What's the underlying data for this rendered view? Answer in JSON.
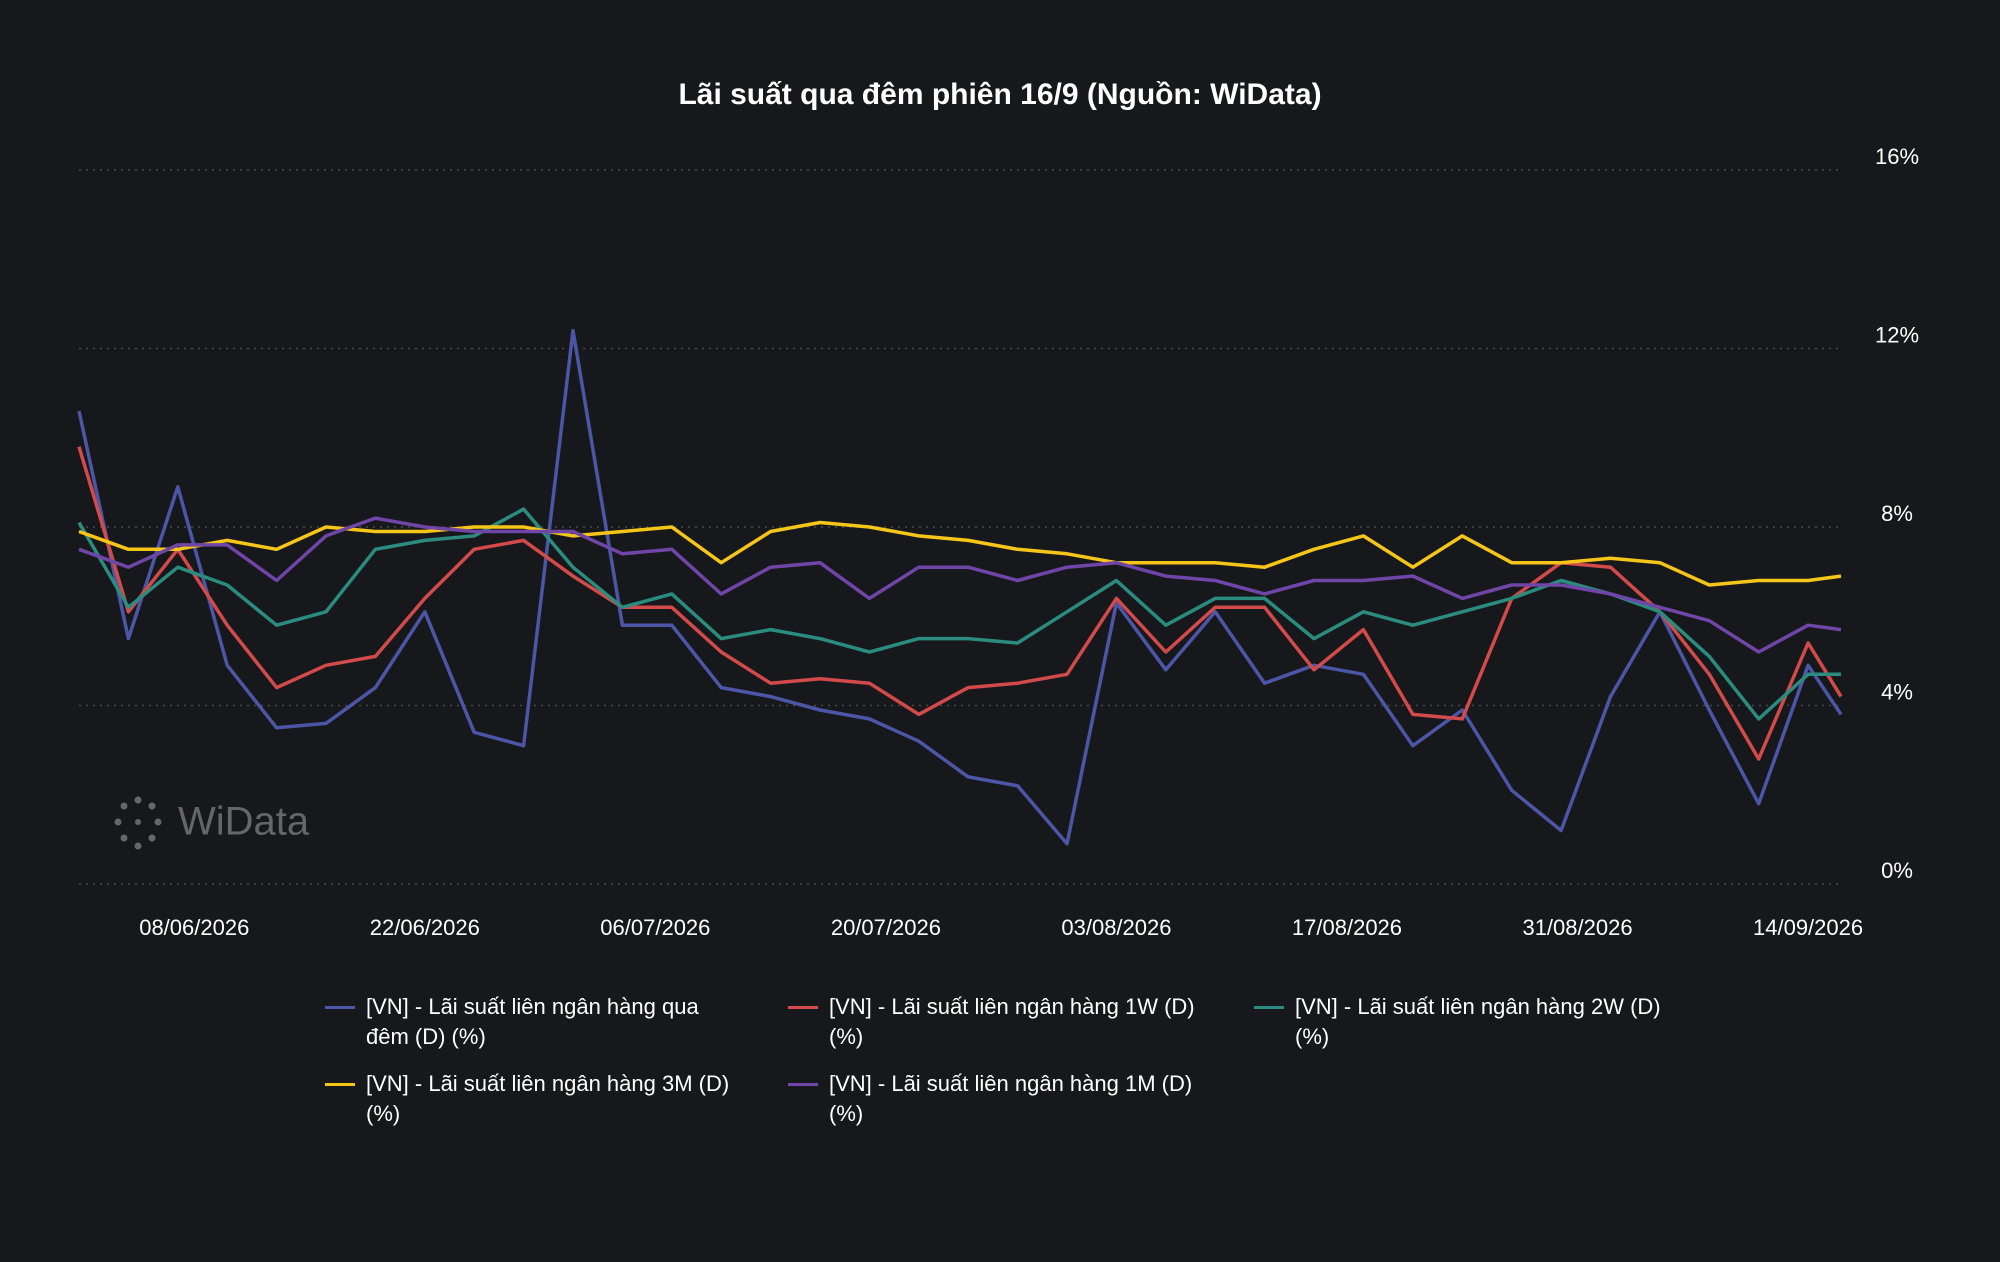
{
  "chart_data": {
    "type": "line",
    "title": "Lãi suất qua đêm phiên 16/9 (Nguồn: WiData)",
    "watermark": "WiData",
    "x": [
      "2026-06-01",
      "2026-06-04",
      "2026-06-07",
      "2026-06-10",
      "2026-06-13",
      "2026-06-16",
      "2026-06-19",
      "2026-06-22",
      "2026-06-25",
      "2026-06-28",
      "2026-07-01",
      "2026-07-04",
      "2026-07-07",
      "2026-07-10",
      "2026-07-13",
      "2026-07-16",
      "2026-07-19",
      "2026-07-22",
      "2026-07-25",
      "2026-07-28",
      "2026-07-31",
      "2026-08-03",
      "2026-08-06",
      "2026-08-09",
      "2026-08-12",
      "2026-08-15",
      "2026-08-18",
      "2026-08-21",
      "2026-08-24",
      "2026-08-27",
      "2026-08-30",
      "2026-09-02",
      "2026-09-05",
      "2026-09-08",
      "2026-09-11",
      "2026-09-14",
      "2026-09-16"
    ],
    "xlim": [
      "2026-06-01",
      "2026-09-16"
    ],
    "xticks": [
      {
        "value": "2026-06-08",
        "label": "08/06/2026"
      },
      {
        "value": "2026-06-22",
        "label": "22/06/2026"
      },
      {
        "value": "2026-07-06",
        "label": "06/07/2026"
      },
      {
        "value": "2026-07-20",
        "label": "20/07/2026"
      },
      {
        "value": "2026-08-03",
        "label": "03/08/2026"
      },
      {
        "value": "2026-08-17",
        "label": "17/08/2026"
      },
      {
        "value": "2026-08-31",
        "label": "31/08/2026"
      },
      {
        "value": "2026-09-14",
        "label": "14/09/2026"
      }
    ],
    "ylim": [
      0,
      16
    ],
    "yticks": [
      {
        "value": 0,
        "label": "0%"
      },
      {
        "value": 4,
        "label": "4%"
      },
      {
        "value": 8,
        "label": "8%"
      },
      {
        "value": 12,
        "label": "12%"
      },
      {
        "value": 16,
        "label": "16%"
      }
    ],
    "grid": true,
    "series": [
      {
        "name": "[VN] - Lãi suất liên ngân hàng qua đêm (D) (%)",
        "color": "#4b56a6",
        "values": [
          10.6,
          5.5,
          8.9,
          4.9,
          3.5,
          3.6,
          4.4,
          6.1,
          3.4,
          3.1,
          12.4,
          5.8,
          5.8,
          4.4,
          4.2,
          3.9,
          3.7,
          3.2,
          2.4,
          2.2,
          0.9,
          6.3,
          4.8,
          6.1,
          4.5,
          4.9,
          4.7,
          3.1,
          3.9,
          2.1,
          1.2,
          4.2,
          6.1,
          3.9,
          1.8,
          4.9,
          3.8
        ]
      },
      {
        "name": "[VN] - Lãi suất liên ngân hàng 1W (D) (%)",
        "color": "#d24a4a",
        "values": [
          9.8,
          6.1,
          7.5,
          5.8,
          4.4,
          4.9,
          5.1,
          6.4,
          7.5,
          7.7,
          6.9,
          6.2,
          6.2,
          5.2,
          4.5,
          4.6,
          4.5,
          3.8,
          4.4,
          4.5,
          4.7,
          6.4,
          5.2,
          6.2,
          6.2,
          4.8,
          5.7,
          3.8,
          3.7,
          6.4,
          7.2,
          7.1,
          6.1,
          4.7,
          2.8,
          5.4,
          4.2
        ]
      },
      {
        "name": "[VN] - Lãi suất liên ngân hàng 2W (D) (%)",
        "color": "#2a8c7e",
        "values": [
          8.1,
          6.2,
          7.1,
          6.7,
          5.8,
          6.1,
          7.5,
          7.7,
          7.8,
          8.4,
          7.1,
          6.2,
          6.5,
          5.5,
          5.7,
          5.5,
          5.2,
          5.5,
          5.5,
          5.4,
          6.1,
          6.8,
          5.8,
          6.4,
          6.4,
          5.5,
          6.1,
          5.8,
          6.1,
          6.4,
          6.8,
          6.5,
          6.1,
          5.1,
          3.7,
          4.7,
          4.7
        ]
      },
      {
        "name": "[VN] - Lãi suất liên ngân hàng 3M (D) (%)",
        "color": "#f5c518",
        "values": [
          7.9,
          7.5,
          7.5,
          7.7,
          7.5,
          8.0,
          7.9,
          7.9,
          8.0,
          8.0,
          7.8,
          7.9,
          8.0,
          7.2,
          7.9,
          8.1,
          8.0,
          7.8,
          7.7,
          7.5,
          7.4,
          7.2,
          7.2,
          7.2,
          7.1,
          7.5,
          7.8,
          7.1,
          7.8,
          7.2,
          7.2,
          7.3,
          7.2,
          6.7,
          6.8,
          6.8,
          6.9
        ]
      },
      {
        "name": "[VN] - Lãi suất liên ngân hàng 1M (D) (%)",
        "color": "#6f45a8",
        "values": [
          7.5,
          7.1,
          7.6,
          7.6,
          6.8,
          7.8,
          8.2,
          8.0,
          7.9,
          7.9,
          7.9,
          7.4,
          7.5,
          6.5,
          7.1,
          7.2,
          6.4,
          7.1,
          7.1,
          6.8,
          7.1,
          7.2,
          6.9,
          6.8,
          6.5,
          6.8,
          6.8,
          6.9,
          6.4,
          6.7,
          6.7,
          6.5,
          6.2,
          5.9,
          5.2,
          5.8,
          5.7
        ]
      }
    ]
  }
}
